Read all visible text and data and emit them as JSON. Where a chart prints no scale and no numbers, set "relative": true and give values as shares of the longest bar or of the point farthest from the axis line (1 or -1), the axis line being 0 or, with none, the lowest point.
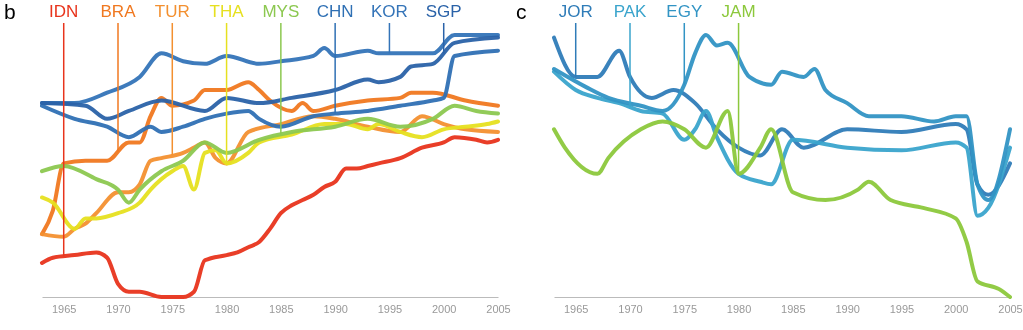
{
  "chart_data": [
    {
      "type": "line",
      "title": "b",
      "relative": true,
      "xlim": [
        1963,
        2005
      ],
      "xticks": [
        1965,
        1970,
        1975,
        1980,
        1985,
        1990,
        1995,
        2000,
        2005
      ],
      "series": [
        {
          "name": "IDN",
          "color": "#e8341c",
          "x": [
            1963,
            1964,
            1966,
            1968,
            1969,
            1970,
            1971,
            1972,
            1974,
            1976,
            1977,
            1978,
            1980,
            1981,
            1982,
            1983,
            1984,
            1985,
            1986,
            1987,
            1988,
            1989,
            1990,
            1991,
            1992,
            1993,
            1994,
            1996,
            1998,
            2000,
            2001,
            2003,
            2004,
            2005
          ],
          "values": [
            0.13,
            0.15,
            0.16,
            0.17,
            0.15,
            0.05,
            0.02,
            0.02,
            0,
            0,
            0.02,
            0.14,
            0.16,
            0.17,
            0.19,
            0.21,
            0.26,
            0.32,
            0.35,
            0.37,
            0.39,
            0.42,
            0.44,
            0.49,
            0.49,
            0.5,
            0.51,
            0.53,
            0.57,
            0.59,
            0.61,
            0.6,
            0.59,
            0.6
          ]
        },
        {
          "name": "BRA",
          "color": "#f07820",
          "x": [
            1963,
            1964,
            1965,
            1967,
            1969,
            1971,
            1972,
            1973,
            1974,
            1975,
            1977,
            1978,
            1980,
            1982,
            1983,
            1984,
            1986,
            1987,
            1988,
            1990,
            1993,
            1996,
            1997,
            1999,
            2002,
            2005
          ],
          "values": [
            0.24,
            0.33,
            0.51,
            0.52,
            0.52,
            0.59,
            0.59,
            0.69,
            0.76,
            0.73,
            0.75,
            0.79,
            0.79,
            0.82,
            0.79,
            0.75,
            0.71,
            0.74,
            0.71,
            0.73,
            0.75,
            0.76,
            0.78,
            0.78,
            0.75,
            0.73
          ]
        },
        {
          "name": "TUR",
          "color": "#f39030",
          "x": [
            1963,
            1965,
            1966,
            1967,
            1968,
            1970,
            1971,
            1972,
            1973,
            1974,
            1976,
            1977,
            1978,
            1979,
            1980,
            1982,
            1985,
            1988,
            1990,
            1993,
            1996,
            1998,
            2000,
            2002,
            2005
          ],
          "values": [
            0.24,
            0.23,
            0.26,
            0.28,
            0.32,
            0.4,
            0.4,
            0.43,
            0.52,
            0.53,
            0.55,
            0.57,
            0.59,
            0.53,
            0.51,
            0.63,
            0.66,
            0.69,
            0.68,
            0.65,
            0.63,
            0.69,
            0.66,
            0.64,
            0.63
          ]
        },
        {
          "name": "THA",
          "color": "#e6e020",
          "x": [
            1963,
            1964,
            1966,
            1967,
            1968,
            1970,
            1972,
            1973,
            1975,
            1976,
            1977,
            1978,
            1979,
            1980,
            1982,
            1983,
            1986,
            1989,
            1991,
            1993,
            1994,
            1996,
            1998,
            2000,
            2002,
            2004,
            2005
          ],
          "values": [
            0.38,
            0.36,
            0.26,
            0.3,
            0.3,
            0.32,
            0.36,
            0.41,
            0.48,
            0.5,
            0.41,
            0.55,
            0.56,
            0.51,
            0.55,
            0.59,
            0.62,
            0.66,
            0.66,
            0.64,
            0.66,
            0.63,
            0.61,
            0.64,
            0.65,
            0.66,
            0.67
          ]
        },
        {
          "name": "MYS",
          "color": "#8cc850",
          "x": [
            1963,
            1965,
            1968,
            1970,
            1971,
            1972,
            1974,
            1976,
            1978,
            1980,
            1983,
            1986,
            1990,
            1993,
            1996,
            1999,
            2001,
            2003,
            2005
          ],
          "values": [
            0.48,
            0.5,
            0.45,
            0.41,
            0.36,
            0.41,
            0.48,
            0.52,
            0.59,
            0.55,
            0.6,
            0.63,
            0.65,
            0.68,
            0.65,
            0.68,
            0.73,
            0.71,
            0.7
          ]
        },
        {
          "name": "CHN",
          "color": "#2f70b4",
          "x": [
            1963,
            1966,
            1969,
            1971,
            1973,
            1974,
            1976,
            1978,
            1980,
            1982,
            1983,
            1985,
            1988,
            1990,
            1993,
            1996,
            1999,
            2000,
            2001,
            2005
          ],
          "values": [
            0.73,
            0.68,
            0.65,
            0.61,
            0.65,
            0.63,
            0.65,
            0.68,
            0.7,
            0.71,
            0.68,
            0.65,
            0.69,
            0.7,
            0.71,
            0.73,
            0.75,
            0.76,
            0.92,
            0.94
          ]
        },
        {
          "name": "KOR",
          "color": "#3474b8",
          "x": [
            1963,
            1966,
            1969,
            1972,
            1974,
            1976,
            1978,
            1980,
            1983,
            1985,
            1988,
            1989,
            1990,
            1993,
            1994,
            1999,
            2001,
            2005
          ],
          "values": [
            0.74,
            0.74,
            0.78,
            0.84,
            0.93,
            0.9,
            0.89,
            0.92,
            0.89,
            0.9,
            0.92,
            0.95,
            0.92,
            0.94,
            0.93,
            0.93,
            1,
            1
          ]
        },
        {
          "name": "SGP",
          "color": "#2a62a8",
          "x": [
            1963,
            1967,
            1969,
            1971,
            1974,
            1978,
            1980,
            1983,
            1986,
            1990,
            1993,
            1994,
            1996,
            1997,
            1999,
            2001,
            2005
          ],
          "values": [
            0.74,
            0.73,
            0.68,
            0.71,
            0.75,
            0.71,
            0.76,
            0.74,
            0.76,
            0.79,
            0.83,
            0.82,
            0.84,
            0.88,
            0.89,
            0.97,
            0.99
          ]
        }
      ]
    },
    {
      "type": "line",
      "title": "c",
      "relative": true,
      "xlim": [
        1963,
        2005
      ],
      "xticks": [
        1965,
        1970,
        1975,
        1980,
        1985,
        1990,
        1995,
        2000,
        2005
      ],
      "series": [
        {
          "name": "JOR",
          "color": "#2f7cb8",
          "x": [
            1963,
            1965,
            1967,
            1969,
            1970,
            1972,
            1974,
            1976,
            1978,
            1980,
            1982,
            1984,
            1986,
            1990,
            1995,
            2000,
            2001,
            2002,
            2003,
            2005
          ],
          "values": [
            0.99,
            0.84,
            0.84,
            0.94,
            0.84,
            0.76,
            0.79,
            0.74,
            0.64,
            0.57,
            0.54,
            0.64,
            0.57,
            0.64,
            0.63,
            0.66,
            0.64,
            0.43,
            0.39,
            0.51
          ]
        },
        {
          "name": "PAK",
          "color": "#3aa4cc",
          "x": [
            1963,
            1965,
            1967,
            1969,
            1971,
            1973,
            1975,
            1976,
            1977,
            1978,
            1980,
            1982,
            1983,
            1985,
            1990,
            1995,
            2000,
            2001,
            2002,
            2003,
            2005
          ],
          "values": [
            0.86,
            0.79,
            0.76,
            0.74,
            0.71,
            0.7,
            0.6,
            0.64,
            0.71,
            0.61,
            0.47,
            0.44,
            0.43,
            0.6,
            0.57,
            0.56,
            0.59,
            0.57,
            0.31,
            0.34,
            0.57
          ]
        },
        {
          "name": "EGY",
          "color": "#3294c4",
          "x": [
            1963,
            1966,
            1968,
            1971,
            1973,
            1975,
            1976,
            1977,
            1978,
            1979,
            1981,
            1983,
            1984,
            1986,
            1987,
            1988,
            1990,
            1992,
            1995,
            1998,
            2000,
            2001,
            2002,
            2003,
            2005
          ],
          "values": [
            0.87,
            0.8,
            0.76,
            0.73,
            0.71,
            0.81,
            0.93,
            1,
            0.96,
            0.97,
            0.84,
            0.81,
            0.86,
            0.84,
            0.87,
            0.79,
            0.74,
            0.69,
            0.69,
            0.67,
            0.69,
            0.69,
            0.43,
            0.37,
            0.64
          ]
        },
        {
          "name": "JAM",
          "color": "#8cc83c",
          "x": [
            1963,
            1964,
            1967,
            1968,
            1971,
            1973,
            1975,
            1977,
            1979,
            1980,
            1982,
            1983,
            1985,
            1988,
            1991,
            1992,
            1994,
            1997,
            2000,
            2001,
            2002,
            2004,
            2005
          ],
          "values": [
            0.64,
            0.57,
            0.47,
            0.53,
            0.64,
            0.67,
            0.64,
            0.57,
            0.71,
            0.47,
            0.57,
            0.64,
            0.4,
            0.37,
            0.41,
            0.44,
            0.37,
            0.34,
            0.3,
            0.21,
            0.06,
            0.03,
            0
          ]
        }
      ]
    }
  ]
}
